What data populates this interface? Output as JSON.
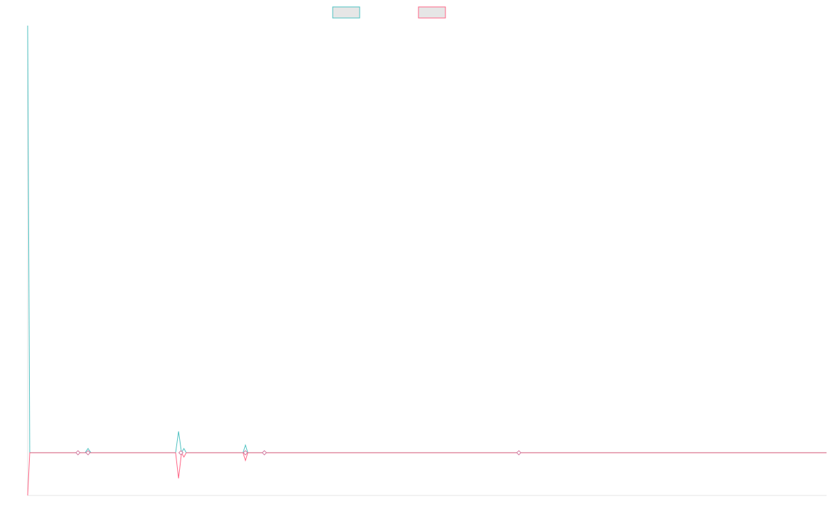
{
  "chart_data": {
    "type": "line",
    "title": "",
    "xlabel": "",
    "ylabel": "",
    "grid": false,
    "legend_placement": "top-center",
    "x": [
      0,
      1,
      2,
      3,
      4,
      5,
      6,
      7,
      8,
      9,
      10,
      11,
      12,
      13,
      14,
      15,
      16,
      17,
      18,
      19,
      20,
      21,
      22,
      23,
      24,
      25,
      26,
      27
    ],
    "ylim": [
      -100,
      1000
    ],
    "series": [
      {
        "key": "series1",
        "color": "#4bc0c0",
        "values": [
          1000,
          0,
          0,
          0,
          0,
          10,
          0,
          0,
          0,
          0,
          0,
          0,
          50,
          0,
          0,
          0,
          0,
          0,
          18,
          0,
          0,
          0,
          0,
          0,
          0,
          0,
          0,
          0
        ]
      },
      {
        "key": "series2",
        "color": "#ff6384",
        "values": [
          -100,
          0,
          0,
          0,
          0,
          0,
          0,
          0,
          0,
          0,
          0,
          0,
          -60,
          -15,
          0,
          0,
          0,
          0,
          -18,
          0,
          0,
          0,
          0,
          0,
          0,
          0,
          0,
          0
        ]
      }
    ],
    "markers": [
      {
        "x": 4,
        "y": 0
      },
      {
        "x": 5,
        "y": 0
      },
      {
        "x": 12.5,
        "y": 0
      },
      {
        "x": 18,
        "y": 0
      },
      {
        "x": 20,
        "y": 0
      },
      {
        "x": 40,
        "y": 0
      }
    ]
  }
}
